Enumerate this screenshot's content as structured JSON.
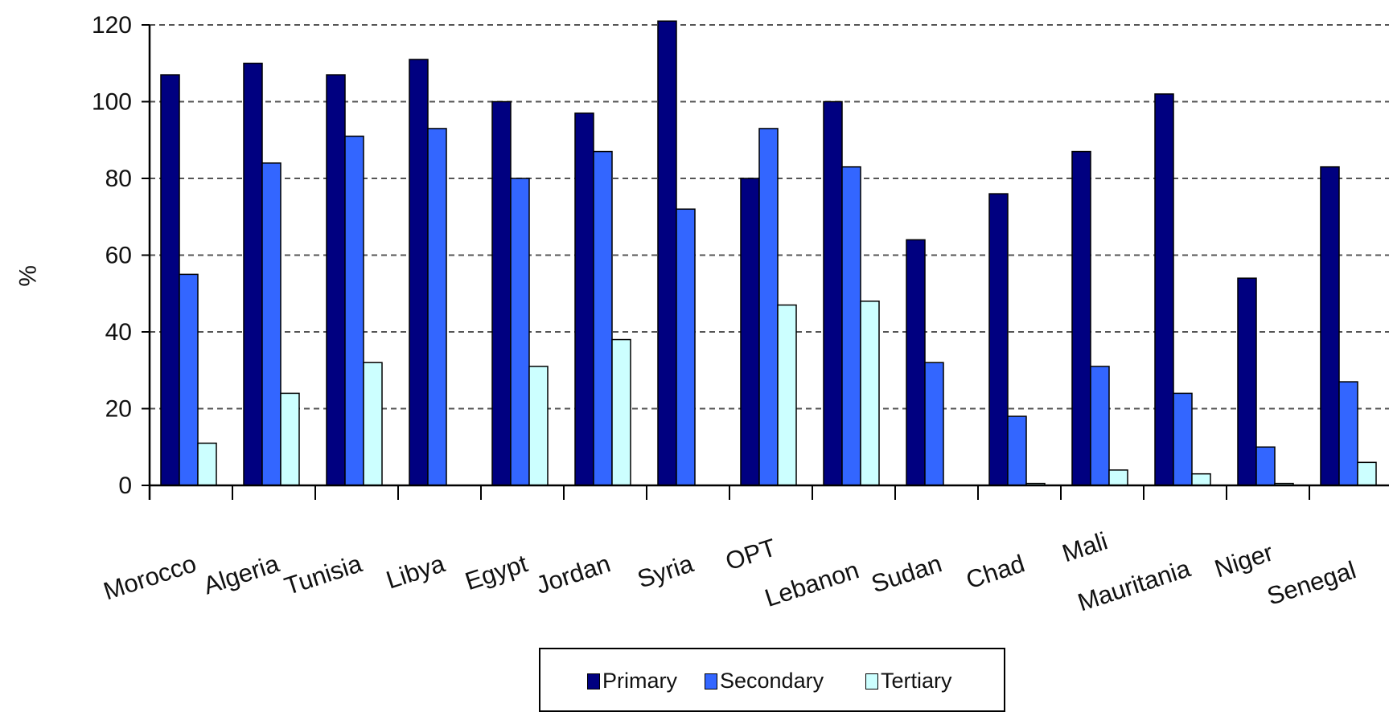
{
  "chart_data": {
    "type": "bar",
    "ylabel": "%",
    "xlabel": "",
    "ylim": [
      0,
      120
    ],
    "yticks": [
      0,
      20,
      40,
      60,
      80,
      100,
      120
    ],
    "grid": true,
    "legend_position": "bottom",
    "categories": [
      "Morocco",
      "Algeria",
      "Tunisia",
      "Libya",
      "Egypt",
      "Jordan",
      "Syria",
      "OPT",
      "Lebanon",
      "Sudan",
      "Chad",
      "Mali",
      "Mauritania",
      "Niger",
      "Senegal"
    ],
    "series": [
      {
        "name": "Primary",
        "color": "#000080",
        "values": [
          107,
          110,
          107,
          111,
          100,
          97,
          121,
          80,
          100,
          64,
          76,
          87,
          102,
          54,
          83
        ]
      },
      {
        "name": "Secondary",
        "color": "#3366ff",
        "values": [
          55,
          84,
          91,
          93,
          80,
          87,
          72,
          93,
          83,
          32,
          18,
          31,
          24,
          10,
          27
        ]
      },
      {
        "name": "Tertiary",
        "color": "#ccffff",
        "values": [
          11,
          24,
          32,
          null,
          31,
          38,
          null,
          47,
          48,
          null,
          0.5,
          4,
          3,
          0.5,
          6
        ]
      }
    ]
  }
}
